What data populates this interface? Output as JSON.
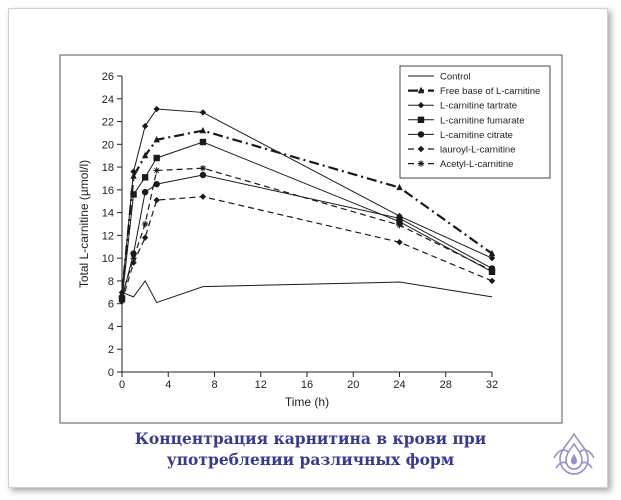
{
  "caption": {
    "line1": "Концентрация карнитина в крови при",
    "line2": "употреблении различных форм"
  },
  "colors": {
    "caption": "#3a3a8c",
    "logo": "#9a8fc8",
    "series": "#1a1a1a",
    "frame_shadow": "#595959"
  },
  "logo": {
    "icon": "water-drop-lotus-icon"
  },
  "chart_data": {
    "type": "line",
    "xlabel": "Time (h)",
    "ylabel": "Total L-carnitine (µmol/l)",
    "xlim": [
      0,
      32
    ],
    "ylim": [
      0,
      26
    ],
    "xticks": [
      0,
      4,
      8,
      12,
      16,
      20,
      24,
      28,
      32
    ],
    "yticks": [
      0,
      2,
      4,
      6,
      8,
      10,
      12,
      14,
      16,
      18,
      20,
      22,
      24,
      26
    ],
    "grid": false,
    "legend_position": "top-right",
    "series": [
      {
        "name": "Control",
        "style": "solid",
        "marker": "none",
        "x": [
          0,
          1,
          2,
          3,
          7,
          24,
          32
        ],
        "y": [
          7.0,
          6.6,
          8.0,
          6.1,
          7.5,
          7.9,
          6.6
        ]
      },
      {
        "name": "Free base of L-carnitine",
        "style": "dashdot",
        "marker": "triangle",
        "x": [
          0,
          1,
          2,
          3,
          7,
          24,
          32
        ],
        "y": [
          6.8,
          17.2,
          19.0,
          20.4,
          21.2,
          16.2,
          10.4
        ]
      },
      {
        "name": "L-carnitine tartrate",
        "style": "solid",
        "marker": "diamond",
        "x": [
          0,
          1,
          2,
          3,
          7,
          24,
          32
        ],
        "y": [
          7.0,
          17.6,
          21.6,
          23.1,
          22.8,
          13.7,
          10.0
        ]
      },
      {
        "name": "L-carnitine fumarate",
        "style": "solid",
        "marker": "square",
        "x": [
          0,
          1,
          2,
          3,
          7,
          24,
          32
        ],
        "y": [
          6.4,
          15.6,
          17.1,
          18.8,
          20.2,
          13.2,
          8.8
        ]
      },
      {
        "name": "L-carnitine citrate",
        "style": "solid",
        "marker": "circle",
        "x": [
          0,
          1,
          2,
          3,
          7,
          24,
          32
        ],
        "y": [
          6.5,
          10.4,
          15.8,
          16.5,
          17.3,
          13.5,
          9.1
        ]
      },
      {
        "name": "lauroyl-L-carnitine",
        "style": "dashed",
        "marker": "diamond",
        "x": [
          0,
          1,
          2,
          3,
          7,
          24,
          32
        ],
        "y": [
          6.2,
          9.6,
          11.8,
          15.1,
          15.4,
          11.4,
          8.0
        ]
      },
      {
        "name": "Acetyl-L-carnitine",
        "style": "dashed",
        "marker": "star",
        "x": [
          0,
          1,
          2,
          3,
          7,
          24,
          32
        ],
        "y": [
          6.7,
          10.0,
          13.0,
          17.7,
          17.9,
          12.9,
          8.9
        ]
      }
    ]
  }
}
